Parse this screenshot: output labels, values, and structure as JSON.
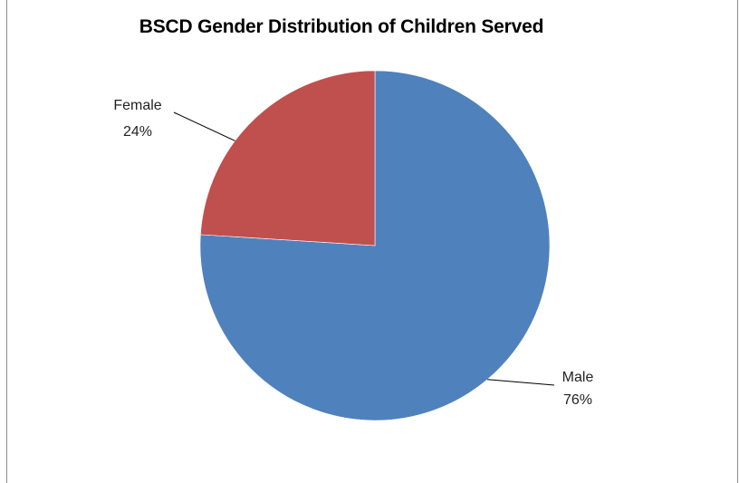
{
  "chart_data": {
    "type": "pie",
    "title": "BSCD Gender Distribution of Children Served",
    "slices": [
      {
        "label": "Male",
        "value": 76,
        "display": "76%",
        "color": "#4f81bd"
      },
      {
        "label": "Female",
        "value": 24,
        "display": "24%",
        "color": "#c0504d"
      }
    ],
    "start_angle_deg": 0,
    "direction": "clockwise",
    "legend": "none",
    "data_labels": "outside-with-leader-lines"
  }
}
